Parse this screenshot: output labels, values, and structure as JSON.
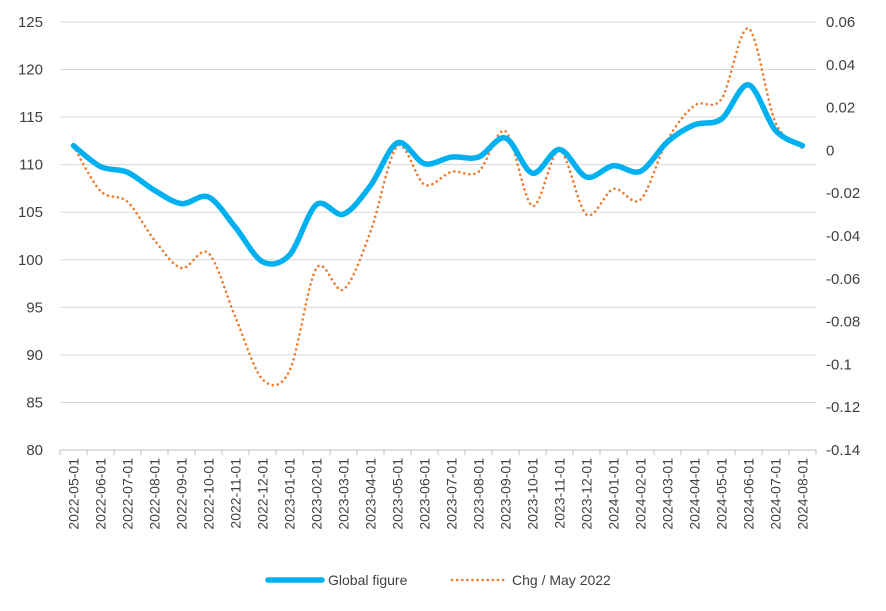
{
  "chart_data": {
    "type": "line",
    "title": "",
    "xlabel": "",
    "ylabel": "",
    "y2label": "",
    "categories": [
      "2022-05-01",
      "2022-06-01",
      "2022-07-01",
      "2022-08-01",
      "2022-09-01",
      "2022-10-01",
      "2022-11-01",
      "2022-12-01",
      "2023-01-01",
      "2023-02-01",
      "2023-03-01",
      "2023-04-01",
      "2023-05-01",
      "2023-06-01",
      "2023-07-01",
      "2023-08-01",
      "2023-09-01",
      "2023-10-01",
      "2023-11-01",
      "2023-12-01",
      "2024-01-01",
      "2024-02-01",
      "2024-03-01",
      "2024-04-01",
      "2024-05-01",
      "2024-06-01",
      "2024-07-01",
      "2024-08-01"
    ],
    "ylim": [
      80,
      125
    ],
    "y_ticks": [
      "80",
      "85",
      "90",
      "95",
      "100",
      "105",
      "110",
      "115",
      "120",
      "125"
    ],
    "y2lim": [
      -0.14,
      0.06
    ],
    "y2_ticks": [
      "-0.14",
      "-0.12",
      "-0.1",
      "-0.08",
      "-0.06",
      "-0.04",
      "-0.02",
      "0",
      "0.02",
      "0.04",
      "0.06"
    ],
    "grid": true,
    "legend_position": "bottom",
    "series": [
      {
        "name": "Global figure",
        "axis": "left",
        "color": "#00B0F0",
        "style": "solid",
        "values": [
          112,
          109.8,
          109.2,
          107.3,
          105.9,
          106.6,
          103.4,
          99.8,
          100.5,
          105.8,
          104.8,
          107.8,
          112.3,
          110.1,
          110.8,
          110.8,
          112.8,
          109.1,
          111.6,
          108.7,
          109.9,
          109.3,
          112.4,
          114.2,
          114.8,
          118.4,
          113.6,
          112
        ]
      },
      {
        "name": "Chg / May 2022",
        "axis": "right",
        "color": "#ED7D31",
        "style": "dotted",
        "values": [
          0.002,
          -0.019,
          -0.024,
          -0.042,
          -0.055,
          -0.048,
          -0.078,
          -0.107,
          -0.103,
          -0.055,
          -0.065,
          -0.038,
          0.002,
          -0.016,
          -0.01,
          -0.01,
          0.009,
          -0.026,
          0,
          -0.03,
          -0.018,
          -0.023,
          0.005,
          0.021,
          0.024,
          0.057,
          0.013,
          0.001
        ]
      }
    ]
  }
}
